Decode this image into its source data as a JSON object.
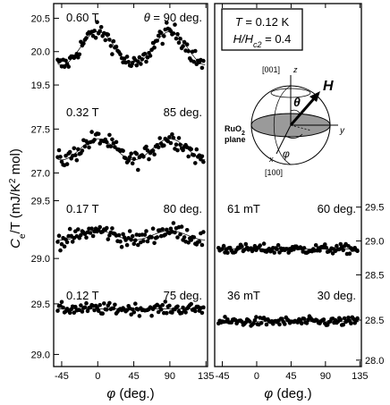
{
  "chart_data": {
    "type": "scatter",
    "ylabel": "C_e/T (mJ/K² mol)",
    "ylabel_parts": {
      "main": "C",
      "sub": "e",
      "rest": "/T (mJ/K",
      "sup": "2",
      "tail": " mol)"
    },
    "xlabel_parts": {
      "symbol": "φ",
      "unit": " (deg.)"
    },
    "x_ticks": [
      -45,
      0,
      45,
      90,
      135
    ],
    "x_tick_labels": [
      "-45",
      "0",
      "45",
      "90",
      "135"
    ],
    "xlim": [
      -55,
      137
    ],
    "left_axis_ticks": [
      {
        "label": "20.5"
      },
      {
        "label": "20.0"
      },
      {
        "label": "19.5"
      },
      {
        "label": "27.5"
      },
      {
        "label": "27.0"
      },
      {
        "label": "29.5"
      },
      {
        "label": "29.0"
      },
      {
        "label": "29.5"
      },
      {
        "label": "29.0"
      }
    ],
    "right_axis_ticks": [
      {
        "label": "29.5"
      },
      {
        "label": "29.0"
      },
      {
        "label": "28.5"
      },
      {
        "label": "28.5"
      },
      {
        "label": "28.0"
      }
    ],
    "inset": {
      "line1_italic": "T",
      "line1_rest": " = 0.12 K",
      "line2_italic": "H/H",
      "line2_sub": "c2",
      "line2_rest": " = 0.4"
    },
    "sphere_labels": {
      "axis_001": "[001]",
      "axis_100": "[100]",
      "z": "z",
      "x": "x",
      "y": "y",
      "theta": "θ",
      "phi": "φ",
      "H": "H",
      "plane_line1": "RuO",
      "plane_sub": "2",
      "plane_line2": "plane"
    },
    "panels": [
      {
        "side": "left",
        "field": "0.60 T",
        "angle_prefix": "θ",
        "angle": "= 90 deg.",
        "ylim": [
          19.3,
          20.72
        ],
        "ticks": [
          20.5,
          20.0,
          19.5
        ],
        "mean": 20.05,
        "amp": 0.25,
        "harm": 4,
        "noise": 0.09
      },
      {
        "side": "left",
        "field": "0.32 T",
        "angle_prefix": "",
        "angle": "85 deg.",
        "ylim": [
          26.75,
          27.85
        ],
        "ticks": [
          27.5,
          27.0
        ],
        "mean": 27.27,
        "amp": 0.12,
        "harm": 4,
        "noise": 0.07
      },
      {
        "side": "left",
        "field": "0.17 T",
        "angle_prefix": "",
        "angle": "80 deg.",
        "ylim": [
          28.8,
          29.55
        ],
        "ticks": [
          29.5,
          29.0
        ],
        "mean": 29.2,
        "amp": 0.04,
        "harm": 4,
        "noise": 0.05
      },
      {
        "side": "left",
        "field": "0.12 T",
        "angle_prefix": "",
        "angle": "75 deg.",
        "ylim": [
          28.88,
          29.72
        ],
        "ticks": [
          29.5,
          29.0
        ],
        "mean": 29.45,
        "amp": 0.0,
        "harm": 4,
        "noise": 0.04
      },
      {
        "side": "right",
        "field": "61 mT",
        "angle_prefix": "",
        "angle": "60 deg.",
        "ylim": [
          28.4,
          29.68
        ],
        "ticks": [
          29.5,
          29.0,
          28.5
        ],
        "mean": 28.88,
        "amp": 0.0,
        "harm": 4,
        "noise": 0.05
      },
      {
        "side": "right",
        "field": "36 mT",
        "angle_prefix": "",
        "angle": "30 deg.",
        "ylim": [
          27.92,
          28.98
        ],
        "ticks": [
          28.5,
          28.0
        ],
        "mean": 28.48,
        "amp": 0.0,
        "harm": 4,
        "noise": 0.04
      }
    ]
  }
}
